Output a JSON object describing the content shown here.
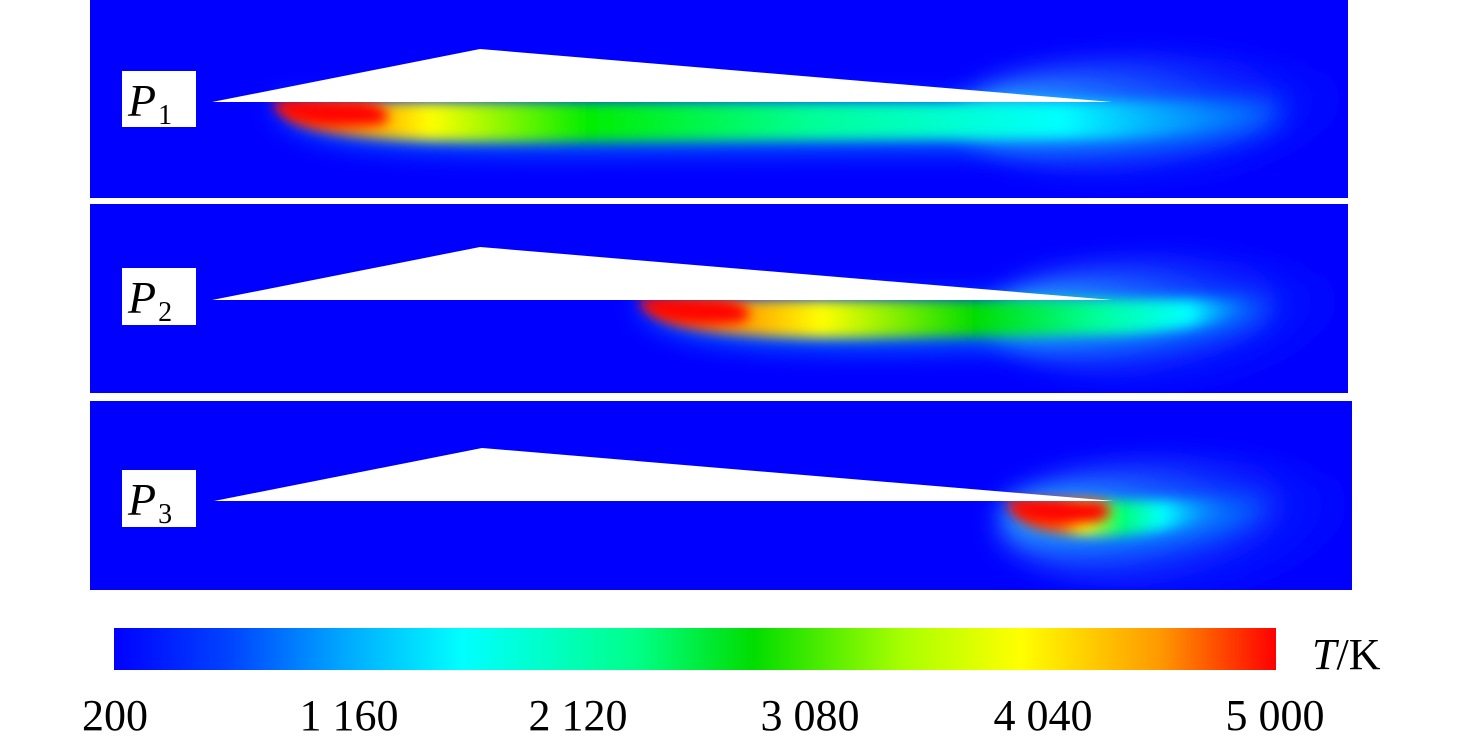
{
  "figure": {
    "panels": [
      {
        "label": "P",
        "subscript": "1",
        "plume_start": 0.07
      },
      {
        "label": "P",
        "subscript": "2",
        "plume_start": 0.48
      },
      {
        "label": "P",
        "subscript": "3",
        "plume_start": 0.89
      }
    ],
    "colorbar": {
      "quantity": "T",
      "unit": "/K",
      "min": 200,
      "max": 5000,
      "ticks": [
        "200",
        "1 160",
        "2 120",
        "3 080",
        "4 040",
        "5 000"
      ],
      "colors": [
        "#0000ff",
        "#0066ff",
        "#00ffff",
        "#00ff66",
        "#00dd00",
        "#aaff00",
        "#ffff00",
        "#ff9900",
        "#ff0000"
      ]
    }
  }
}
